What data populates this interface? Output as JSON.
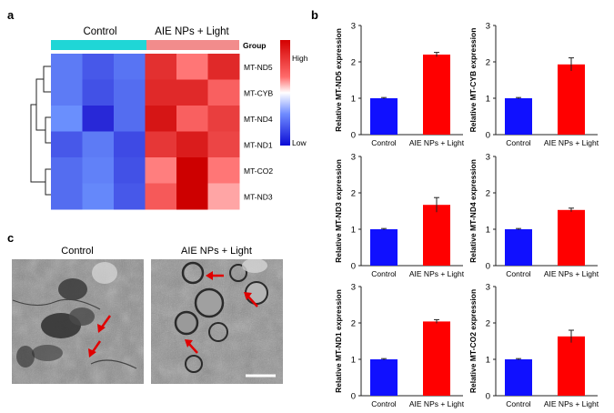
{
  "panels": {
    "a": "a",
    "b": "b",
    "c": "c"
  },
  "heatmap": {
    "groups": [
      "Control",
      "AIE NPs + Light"
    ],
    "group_label": "Group",
    "group_colors": [
      "#1fd6d6",
      "#f28c8c"
    ],
    "rows": [
      "MT-ND5",
      "MT-CYB",
      "MT-ND4",
      "MT-ND1",
      "MT-CO2",
      "MT-ND3"
    ],
    "legend_high": "High",
    "legend_low": "Low",
    "values": [
      [
        -1.0,
        -1.25,
        -1.05,
        1.25,
        0.75,
        1.3
      ],
      [
        -1.0,
        -1.3,
        -1.1,
        1.3,
        1.3,
        0.9
      ],
      [
        -0.85,
        -1.6,
        -1.1,
        1.45,
        0.9,
        1.15
      ],
      [
        -1.25,
        -1.0,
        -1.35,
        1.2,
        1.4,
        1.1
      ],
      [
        -1.1,
        -0.95,
        -1.3,
        0.7,
        1.6,
        0.75
      ],
      [
        -1.1,
        -0.9,
        -1.25,
        0.95,
        1.6,
        0.45
      ]
    ]
  },
  "chart_data": [
    {
      "type": "bar",
      "categories": [
        "Control",
        "AIE NPs + Light"
      ],
      "values": [
        1.0,
        2.2
      ],
      "errors": [
        0.02,
        0.06
      ],
      "colors": [
        "#1010ff",
        "#ff0000"
      ],
      "ylabel": "Relative MT-ND5 expression",
      "ylim": [
        0,
        3
      ],
      "yticks": [
        0,
        1,
        2,
        3
      ]
    },
    {
      "type": "bar",
      "categories": [
        "Control",
        "AIE NPs + Light"
      ],
      "values": [
        1.0,
        1.93
      ],
      "errors": [
        0.02,
        0.18
      ],
      "colors": [
        "#1010ff",
        "#ff0000"
      ],
      "ylabel": "Relative MT-CYB expression",
      "ylim": [
        0,
        3
      ],
      "yticks": [
        0,
        1,
        2,
        3
      ]
    },
    {
      "type": "bar",
      "categories": [
        "Control",
        "AIE NPs + Light"
      ],
      "values": [
        1.0,
        1.67
      ],
      "errors": [
        0.02,
        0.2
      ],
      "colors": [
        "#1010ff",
        "#ff0000"
      ],
      "ylabel": "Relative MT-ND3 expression",
      "ylim": [
        0,
        3
      ],
      "yticks": [
        0,
        1,
        2,
        3
      ]
    },
    {
      "type": "bar",
      "categories": [
        "Control",
        "AIE NPs + Light"
      ],
      "values": [
        1.0,
        1.53
      ],
      "errors": [
        0.02,
        0.05
      ],
      "colors": [
        "#1010ff",
        "#ff0000"
      ],
      "ylabel": "Relative MT-ND4 expression",
      "ylim": [
        0,
        3
      ],
      "yticks": [
        0,
        1,
        2,
        3
      ]
    },
    {
      "type": "bar",
      "categories": [
        "Control",
        "AIE NPs + Light"
      ],
      "values": [
        1.0,
        2.04
      ],
      "errors": [
        0.02,
        0.05
      ],
      "colors": [
        "#1010ff",
        "#ff0000"
      ],
      "ylabel": "Relative MT-ND1 expression",
      "ylim": [
        0,
        3
      ],
      "yticks": [
        0,
        1,
        2,
        3
      ]
    },
    {
      "type": "bar",
      "categories": [
        "Control",
        "AIE NPs + Light"
      ],
      "values": [
        1.0,
        1.63
      ],
      "errors": [
        0.02,
        0.17
      ],
      "colors": [
        "#1010ff",
        "#ff0000"
      ],
      "ylabel": "Relative MT-CO2 expression",
      "ylim": [
        0,
        3
      ],
      "yticks": [
        0,
        1,
        2,
        3
      ]
    }
  ],
  "micrographs": {
    "titles": [
      "Control",
      "AIE NPs + Light"
    ],
    "arrow_color": "#e00000",
    "scale_bar_color": "#ffffff"
  }
}
